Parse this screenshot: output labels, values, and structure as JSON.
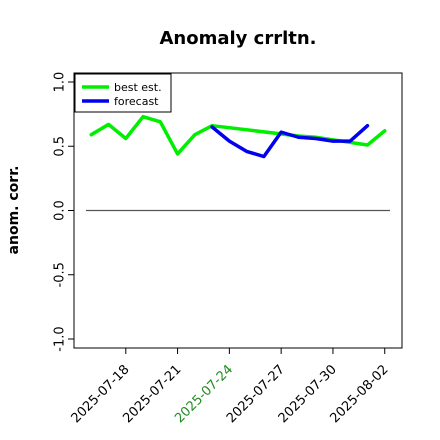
{
  "chart_data": {
    "type": "line",
    "title": "Anomaly crrltn.",
    "xlabel": "",
    "ylabel": "anom. corr.",
    "ylim": [
      -1.0,
      1.0
    ],
    "yticks": [
      -1.0,
      -0.5,
      0.0,
      0.5,
      1.0
    ],
    "ytick_labels": [
      "-1.0",
      "-0.5",
      "0.0",
      "0.5",
      "1.0"
    ],
    "xlim": [
      "2025-07-15",
      "2025-08-03"
    ],
    "xticks": [
      "2025-07-18",
      "2025-07-21",
      "2025-07-24",
      "2025-07-27",
      "2025-07-30",
      "2025-08-02"
    ],
    "highlighted_tick": "2025-07-24",
    "highlight_color": "#228b22",
    "reference_line": 0.0,
    "reference_line_color": "#555555",
    "grid": false,
    "legend_position": "top-left",
    "x": [
      "2025-07-16",
      "2025-07-17",
      "2025-07-18",
      "2025-07-19",
      "2025-07-20",
      "2025-07-21",
      "2025-07-22",
      "2025-07-23",
      "2025-07-24",
      "2025-07-25",
      "2025-07-26",
      "2025-07-27",
      "2025-07-28",
      "2025-07-29",
      "2025-07-30",
      "2025-07-31",
      "2025-08-01",
      "2025-08-02"
    ],
    "series": [
      {
        "name": "best est.",
        "color": "#00ee00",
        "values": [
          0.59,
          0.67,
          0.56,
          0.73,
          0.69,
          0.44,
          0.59,
          0.66,
          null,
          null,
          null,
          null,
          0.58,
          0.57,
          0.55,
          0.53,
          0.51,
          0.62
        ]
      },
      {
        "name": "forecast",
        "color": "#0000ee",
        "values": [
          null,
          null,
          null,
          null,
          null,
          null,
          null,
          0.65,
          0.54,
          0.46,
          0.42,
          0.61,
          0.57,
          0.56,
          0.54,
          0.54,
          0.66,
          null
        ]
      }
    ]
  }
}
